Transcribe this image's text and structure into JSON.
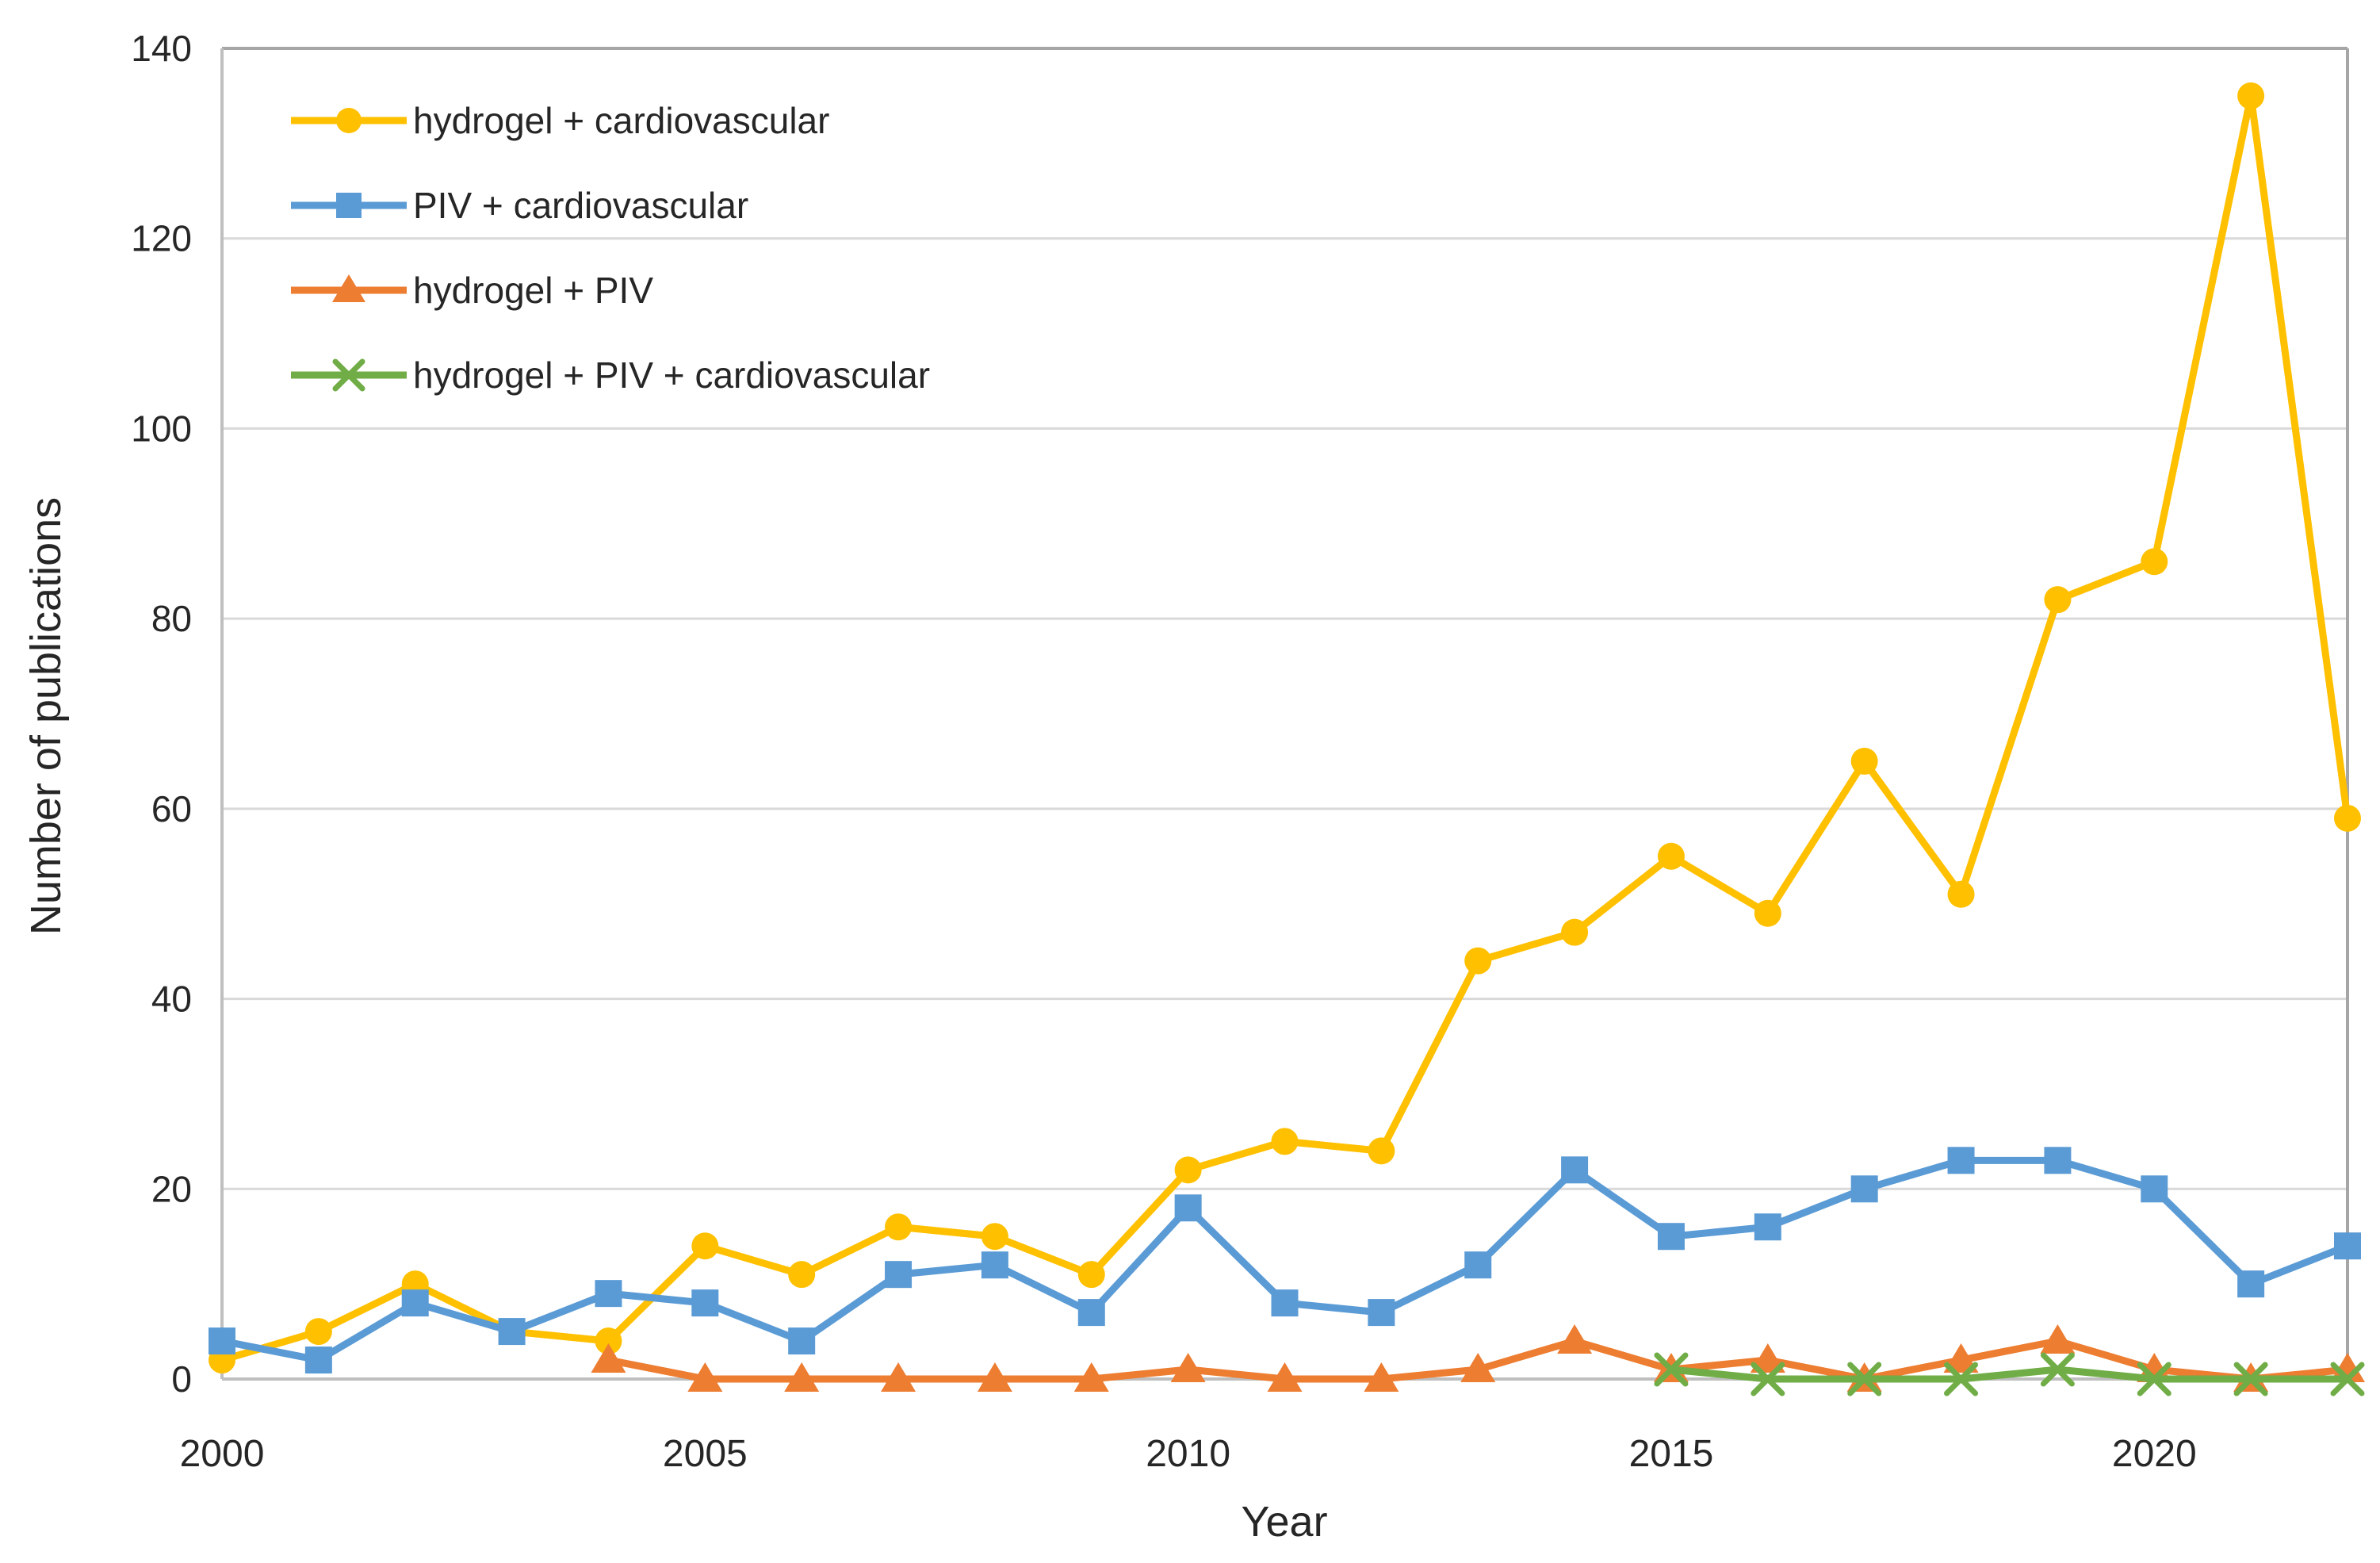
{
  "chart_data": {
    "type": "line",
    "title": "",
    "xlabel": "Year",
    "ylabel": "Number of publications",
    "x": [
      2000,
      2001,
      2002,
      2003,
      2004,
      2005,
      2006,
      2007,
      2008,
      2009,
      2010,
      2011,
      2012,
      2013,
      2014,
      2015,
      2016,
      2017,
      2018,
      2019,
      2020,
      2021,
      2022
    ],
    "xticks": [
      2000,
      2005,
      2010,
      2015,
      2020
    ],
    "yticks": [
      0,
      20,
      40,
      60,
      80,
      100,
      120,
      140
    ],
    "ylim": [
      0,
      140
    ],
    "grid": "horizontal",
    "gridline_color": "#d9d9d9",
    "border_color": "#a6a6a6",
    "axis_line_color": "#bfbfbf",
    "legend_position": "top-left-inside",
    "series": [
      {
        "name": "hydrogel + cardiovascular",
        "color": "#FFC000",
        "marker": "circle",
        "values": [
          2,
          5,
          10,
          5,
          4,
          14,
          11,
          16,
          15,
          11,
          22,
          25,
          24,
          44,
          47,
          55,
          49,
          65,
          51,
          82,
          86,
          135,
          59
        ]
      },
      {
        "name": "PIV + cardiovascular",
        "color": "#5B9BD5",
        "marker": "square",
        "values": [
          4,
          2,
          8,
          5,
          9,
          8,
          4,
          11,
          12,
          7,
          18,
          8,
          7,
          12,
          22,
          15,
          16,
          20,
          23,
          23,
          20,
          10,
          14
        ]
      },
      {
        "name": "hydrogel + PIV",
        "color": "#ED7D31",
        "marker": "triangle",
        "values": [
          null,
          null,
          null,
          null,
          2,
          0,
          0,
          0,
          0,
          0,
          1,
          0,
          0,
          1,
          4,
          1,
          2,
          0,
          2,
          4,
          1,
          0,
          1
        ]
      },
      {
        "name": "hydrogel + PIV + cardiovascular",
        "color": "#70AD47",
        "marker": "x",
        "values": [
          null,
          null,
          null,
          null,
          null,
          null,
          null,
          null,
          null,
          null,
          null,
          null,
          null,
          null,
          null,
          1,
          0,
          0,
          0,
          1,
          0,
          0,
          0
        ]
      }
    ]
  }
}
